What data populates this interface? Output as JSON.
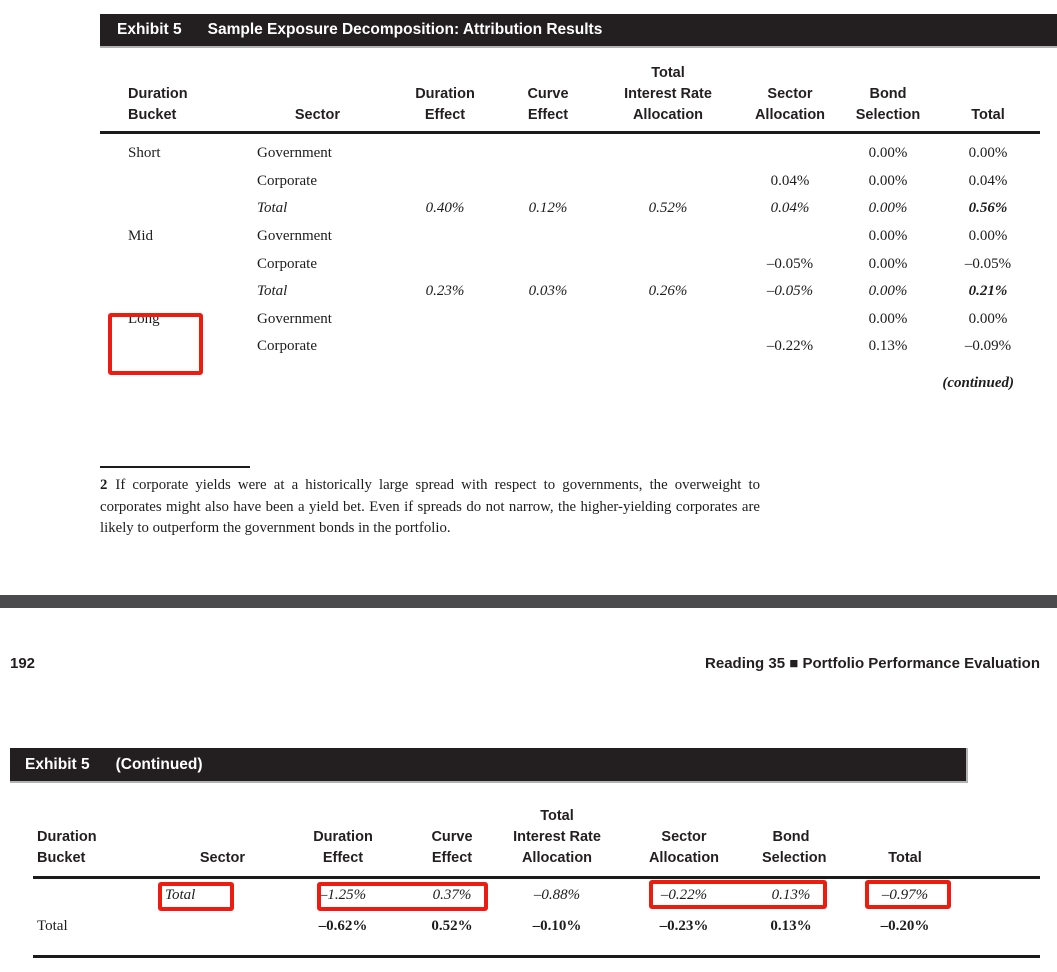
{
  "page": {
    "exhibit1": {
      "label": "Exhibit 5",
      "title": "Sample Exposure Decomposition: Attribution Results"
    },
    "exhibit2": {
      "label": "Exhibit 5",
      "title": "(Continued)"
    },
    "continued_note": "(continued)",
    "page_number": "192",
    "running_header": "Reading 35 ■ Portfolio Performance Evaluation",
    "footnote": {
      "marker": "2",
      "text": "If corporate yields were at a historically large spread with respect to governments, the overweight to corporates might also have been a yield bet. Even if spreads do not narrow, the higher-yielding corporates are likely to outperform the government bonds in the portfolio."
    }
  },
  "table1": {
    "headers": [
      "Duration\nBucket",
      "Sector",
      "Duration\nEffect",
      "Curve\nEffect",
      "Total\nInterest Rate\nAllocation",
      "Sector\nAllocation",
      "Bond\nSelection",
      "Total"
    ],
    "rows": [
      {
        "cells": [
          "Short",
          "Government",
          "",
          "",
          "",
          "",
          "0.00%",
          "0.00%"
        ]
      },
      {
        "cells": [
          "",
          "Corporate",
          "",
          "",
          "",
          "0.04%",
          "0.00%",
          "0.04%"
        ]
      },
      {
        "cells": [
          "",
          "Total",
          "0.40%",
          "0.12%",
          "0.52%",
          "0.04%",
          "0.00%",
          "0.56%"
        ]
      },
      {
        "cells": [
          "Mid",
          "Government",
          "",
          "",
          "",
          "",
          "0.00%",
          "0.00%"
        ]
      },
      {
        "cells": [
          "",
          "Corporate",
          "",
          "",
          "",
          "–0.05%",
          "0.00%",
          "–0.05%"
        ]
      },
      {
        "cells": [
          "",
          "Total",
          "0.23%",
          "0.03%",
          "0.26%",
          "–0.05%",
          "0.00%",
          "0.21%"
        ]
      },
      {
        "cells": [
          "Long",
          "Government",
          "",
          "",
          "",
          "",
          "0.00%",
          "0.00%"
        ]
      },
      {
        "cells": [
          "",
          "Corporate",
          "",
          "",
          "",
          "–0.22%",
          "0.13%",
          "–0.09%"
        ]
      }
    ]
  },
  "table2": {
    "headers": [
      "Duration\nBucket",
      "Sector",
      "Duration\nEffect",
      "Curve\nEffect",
      "Total\nInterest Rate\nAllocation",
      "Sector\nAllocation",
      "Bond\nSelection",
      "Total"
    ],
    "rows": [
      {
        "cells": [
          "",
          "Total",
          "–1.25%",
          "0.37%",
          "–0.88%",
          "–0.22%",
          "0.13%",
          "–0.97%"
        ]
      },
      {
        "cells": [
          "Total",
          "",
          "–0.62%",
          "0.52%",
          "–0.10%",
          "–0.23%",
          "0.13%",
          "–0.20%"
        ]
      }
    ]
  },
  "annotations": {
    "color": "#ee1c10",
    "boxes": [
      {
        "target": "table1-long-bucket-label"
      },
      {
        "target": "table2-sector-total-label"
      },
      {
        "target": "table2-duration-and-curve-effect-values"
      },
      {
        "target": "table2-sector-allocation-and-bond-selection-values"
      },
      {
        "target": "table2-total-value"
      }
    ]
  }
}
